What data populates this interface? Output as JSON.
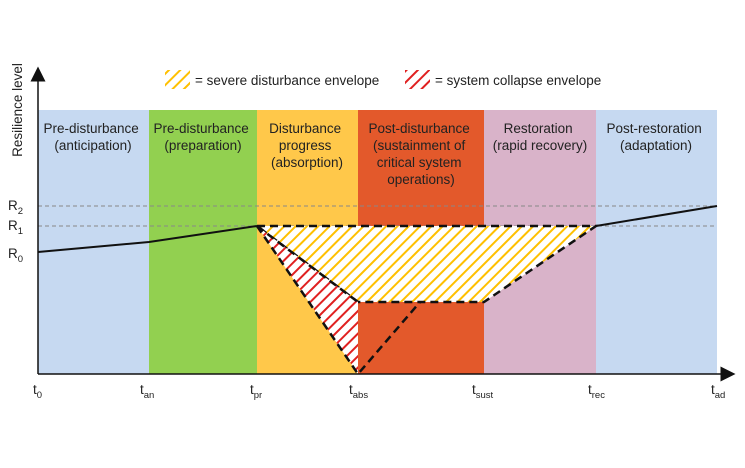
{
  "y_axis_label": "Resilience level",
  "legend": {
    "severe": "= severe disturbance envelope",
    "collapse": "= system collapse envelope"
  },
  "phases": [
    {
      "lines": [
        "Pre-disturbance",
        "(anticipation)"
      ],
      "color": "#c6d9f1"
    },
    {
      "lines": [
        "Pre-disturbance",
        "(preparation)"
      ],
      "color": "#92d050"
    },
    {
      "lines": [
        "Disturbance",
        "progress",
        "(absorption)"
      ],
      "color": "#ffc84a"
    },
    {
      "lines": [
        "Post-disturbance",
        "(sustainment of",
        "critical system",
        "operations)"
      ],
      "color": "#e3592b"
    },
    {
      "lines": [
        "Restoration",
        "(rapid recovery)"
      ],
      "color": "#d9b3c9"
    },
    {
      "lines": [
        "Post-restoration",
        "(adaptation)"
      ],
      "color": "#c6d9f1"
    }
  ],
  "x_ticks": [
    {
      "main": "t",
      "sub": "0"
    },
    {
      "main": "t",
      "sub": "an"
    },
    {
      "main": "t",
      "sub": "pr"
    },
    {
      "main": "t",
      "sub": "abs"
    },
    {
      "main": "t",
      "sub": "sust"
    },
    {
      "main": "t",
      "sub": "rec"
    },
    {
      "main": "t",
      "sub": "ad"
    }
  ],
  "y_ticks": [
    {
      "main": "R",
      "sub": "2"
    },
    {
      "main": "R",
      "sub": "1"
    },
    {
      "main": "R",
      "sub": "0"
    }
  ],
  "colors": {
    "severe_hatch": "#ffc000",
    "collapse_hatch": "#e02020",
    "curve": "#111111"
  }
}
